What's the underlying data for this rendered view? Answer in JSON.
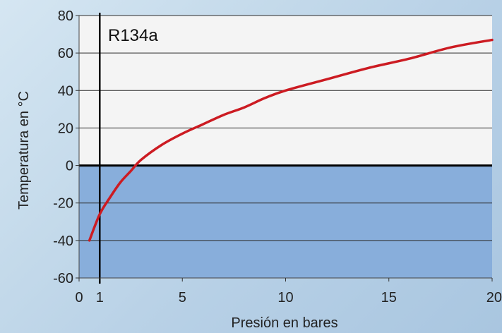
{
  "chart_data": {
    "type": "line",
    "series_label": "R134a",
    "xlabel": "Presión en bares",
    "ylabel": "Temperatura en °C",
    "xlim": [
      0,
      20
    ],
    "ylim": [
      -60,
      80
    ],
    "x_ticks": [
      0,
      1,
      5,
      10,
      15,
      20
    ],
    "y_ticks": [
      80,
      60,
      40,
      20,
      0,
      -20,
      -40,
      -60
    ],
    "reference_line_x": 1,
    "zero_line_y": 0,
    "grid": "horizontal",
    "colors": {
      "line": "#cc1b22",
      "below_zero_fill": "#88aedb",
      "above_zero_fill": "#f4f4f4",
      "axis": "#000000"
    },
    "x": [
      0.5,
      1,
      1.5,
      2,
      2.5,
      3,
      4,
      5,
      6,
      7,
      8,
      9,
      10,
      12,
      14,
      16,
      18,
      20
    ],
    "y": [
      -40,
      -26,
      -17,
      -9,
      -3,
      3,
      11,
      17,
      22,
      27,
      31,
      36,
      40,
      46,
      52,
      57,
      63,
      67
    ]
  }
}
